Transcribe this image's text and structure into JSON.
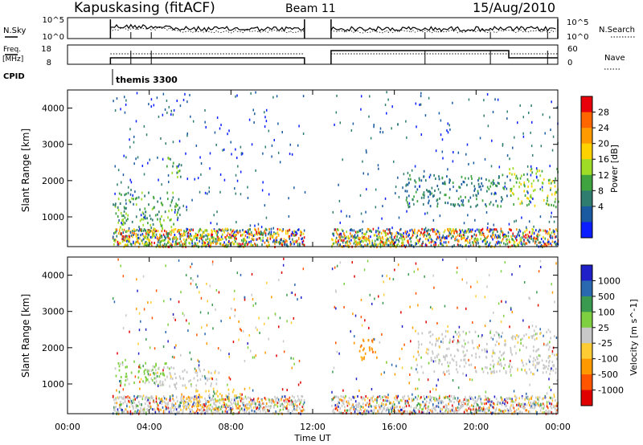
{
  "header": {
    "station": "Kapuskasing (fitACF)",
    "beam": "Beam 11",
    "date": "15/Aug/2010"
  },
  "top_panels": {
    "nsky_label": "N.Sky",
    "nsky_ticks": [
      "10^5",
      "10^0"
    ],
    "nsearch_label": "N.Search",
    "nsearch_ticks": [
      "10^5",
      "10^0"
    ],
    "freq_label_1": "Freq.",
    "freq_label_2": "[MHz]",
    "freq_ticks": [
      "18",
      "8"
    ],
    "nave_label": "Nave",
    "nave_ticks": [
      "60",
      "0"
    ],
    "cpid_label": "CPID",
    "cpid_value": "themis 3300"
  },
  "x_axis": {
    "label": "Time UT",
    "ticks": [
      "00:00",
      "04:00",
      "08:00",
      "12:00",
      "16:00",
      "20:00",
      "00:00"
    ]
  },
  "power_scale": {
    "label": "Power [dB]",
    "ticks": [
      "28",
      "24",
      "20",
      "16",
      "12",
      "8",
      "4"
    ],
    "colors": [
      "#e8000b",
      "#ff6600",
      "#ff9a00",
      "#ffd200",
      "#9edc28",
      "#3fa43f",
      "#2e7d6e",
      "#1a5aa0",
      "#0a1eff"
    ]
  },
  "velocity_scale": {
    "label": "Velocity [m s^-1]",
    "ticks": [
      "1000",
      "500",
      "100",
      "25",
      "-25",
      "-100",
      "-500",
      "-1000"
    ],
    "colors": [
      "#2020c8",
      "#2a68b0",
      "#3a9a50",
      "#7fd040",
      "#c8c8c8",
      "#ffcc33",
      "#ff9900",
      "#ff5500",
      "#e00000"
    ]
  },
  "chart_data": [
    {
      "type": "heatmap",
      "title": "Kapuskasing (fitACF) Beam 11 15/Aug/2010",
      "xlabel": "Time UT",
      "ylabel": "Slant Range [km]",
      "quantity": "Power [dB]",
      "xlim": [
        0,
        24
      ],
      "ylim": [
        180,
        4500
      ],
      "y_ticks": [
        1000,
        2000,
        3000,
        4000
      ],
      "y_tick_labels": [
        "1000",
        "2000",
        "3000",
        "4000"
      ],
      "color_range": [
        0,
        32
      ],
      "data_gap_hours": [
        [
          0,
          2.1
        ],
        [
          11.6,
          12.9
        ]
      ],
      "echo_regions": [
        {
          "t": [
            2.2,
            5.5
          ],
          "range_km": [
            700,
            1700
          ],
          "level": 10
        },
        {
          "t": [
            4.8,
            5.6
          ],
          "range_km": [
            2100,
            2700
          ],
          "level": 8
        },
        {
          "t": [
            2.5,
            9.0
          ],
          "range_km": [
            200,
            700
          ],
          "level": 14
        },
        {
          "t": [
            13.3,
            16.5
          ],
          "range_km": [
            200,
            600
          ],
          "level": 18
        },
        {
          "t": [
            16.5,
            21.5
          ],
          "range_km": [
            1300,
            2200
          ],
          "level": 6
        },
        {
          "t": [
            21.6,
            24.0
          ],
          "range_km": [
            1300,
            2400
          ],
          "level": 12
        }
      ]
    },
    {
      "type": "heatmap",
      "xlabel": "Time UT",
      "ylabel": "Slant Range [km]",
      "quantity": "Velocity [m s^-1]",
      "xlim": [
        0,
        24
      ],
      "ylim": [
        180,
        4500
      ],
      "y_ticks": [
        1000,
        2000,
        3000,
        4000
      ],
      "y_tick_labels": [
        "1000",
        "2000",
        "3000",
        "4000"
      ],
      "color_range": [
        -1000,
        1000
      ],
      "data_gap_hours": [
        [
          0,
          2.1
        ],
        [
          11.6,
          12.9
        ]
      ],
      "echo_regions": [
        {
          "t": [
            2.3,
            4.8
          ],
          "range_km": [
            1000,
            1700
          ],
          "velocity": 200
        },
        {
          "t": [
            3.8,
            7.5
          ],
          "range_km": [
            900,
            1500
          ],
          "velocity": 0
        },
        {
          "t": [
            5.5,
            9.0
          ],
          "range_km": [
            300,
            900
          ],
          "velocity": -150
        },
        {
          "t": [
            14.0,
            15.2
          ],
          "range_km": [
            1700,
            2300
          ],
          "velocity": -300
        },
        {
          "t": [
            17.0,
            24.0
          ],
          "range_km": [
            1300,
            2500
          ],
          "velocity": 0
        }
      ]
    }
  ]
}
